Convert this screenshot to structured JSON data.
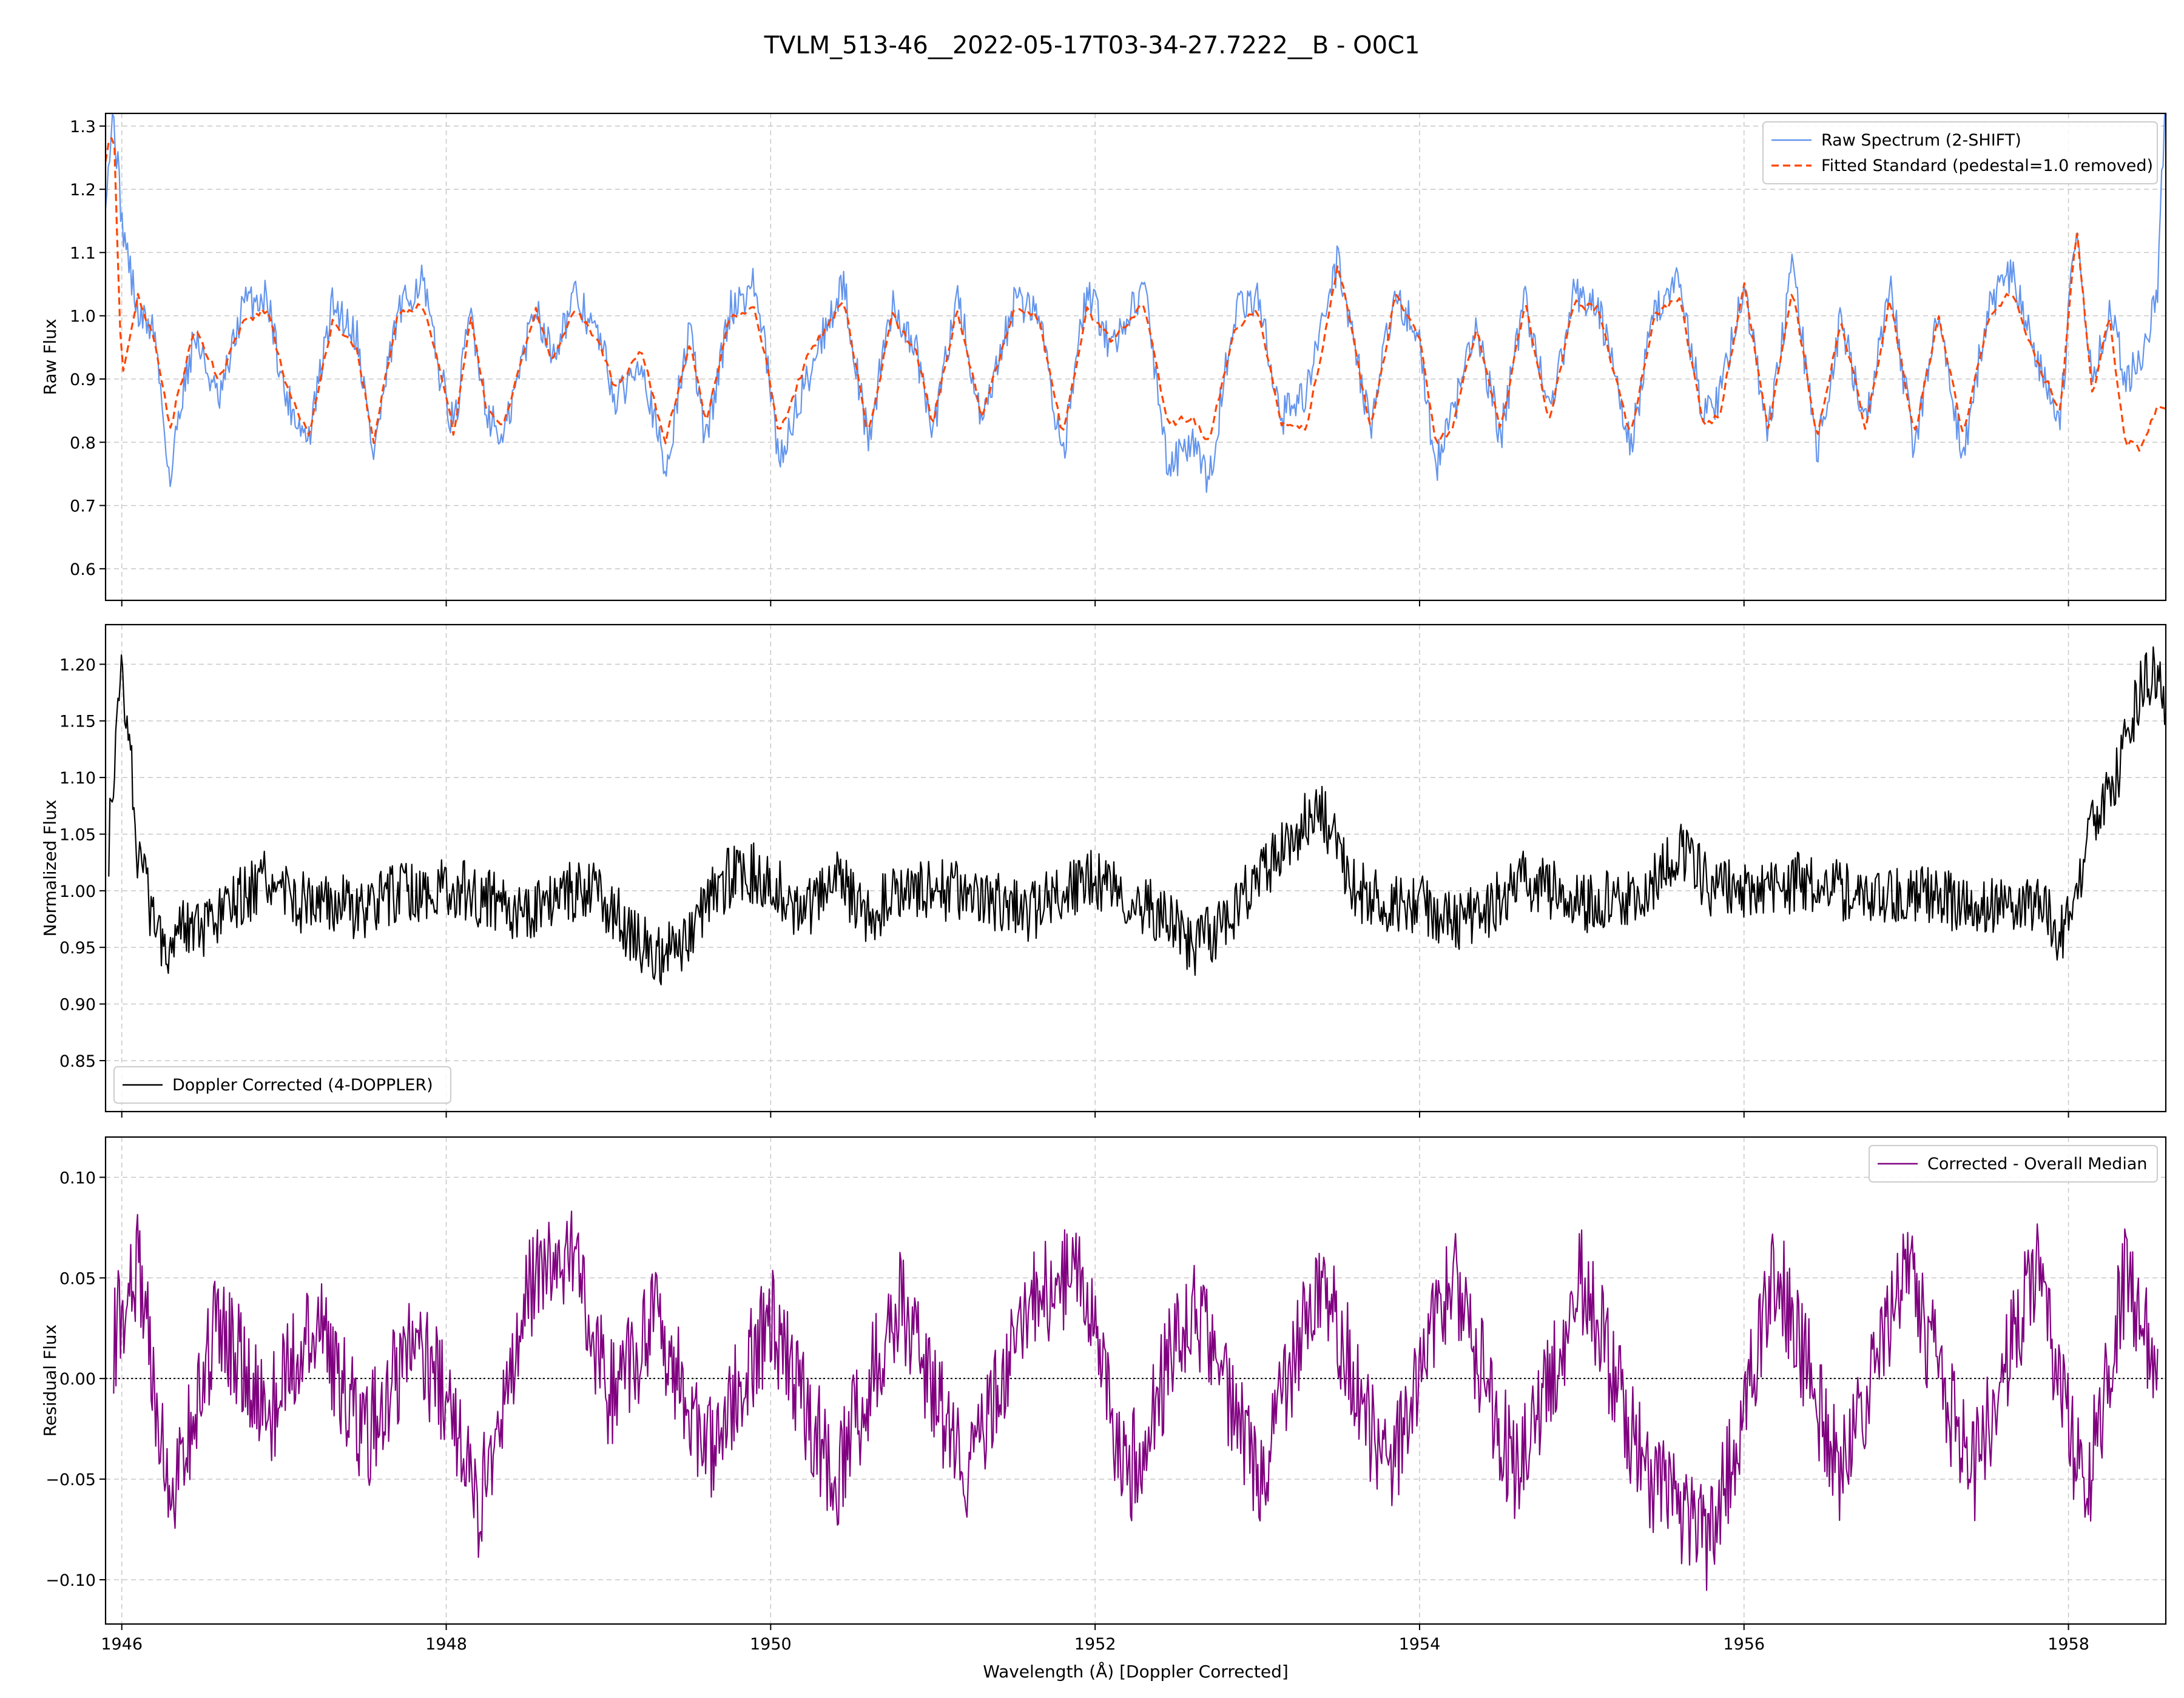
{
  "title": "TVLM_513-46__2022-05-17T03-34-27.7222__B - O0C1",
  "chart_data": [
    {
      "type": "line",
      "panel": "top",
      "ylabel": "Raw Flux",
      "xlim": [
        1945.9,
        1958.6
      ],
      "ylim": [
        0.55,
        1.32
      ],
      "yticks": [
        0.6,
        0.7,
        0.8,
        0.9,
        1.0,
        1.1,
        1.2,
        1.3
      ],
      "ytick_labels": [
        "0.6",
        "0.7",
        "0.8",
        "0.9",
        "1.0",
        "1.1",
        "1.2",
        "1.3"
      ],
      "legend_position": "upper right",
      "grid": true,
      "series": [
        {
          "name": "Raw Spectrum (2-SHIFT)",
          "color": "#6495ed",
          "style": "solid",
          "x": [
            1945.9,
            1945.95,
            1946.0,
            1946.1,
            1946.2,
            1946.3,
            1946.35,
            1946.45,
            1946.6,
            1946.75,
            1946.9,
            1947.0,
            1947.15,
            1947.3,
            1947.45,
            1947.55,
            1947.7,
            1947.85,
            1947.95,
            1948.05,
            1948.15,
            1948.25,
            1948.35,
            1948.55,
            1948.65,
            1948.8,
            1948.95,
            1949.05,
            1949.2,
            1949.35,
            1949.5,
            1949.6,
            1949.75,
            1949.9,
            1949.97,
            1950.05,
            1950.25,
            1950.35,
            1950.45,
            1950.6,
            1950.75,
            1950.9,
            1951.0,
            1951.15,
            1951.3,
            1951.5,
            1951.65,
            1951.8,
            1951.95,
            1952.1,
            1952.3,
            1952.45,
            1952.6,
            1952.7,
            1952.85,
            1953.0,
            1953.15,
            1953.3,
            1953.5,
            1953.7,
            1953.85,
            1954.0,
            1954.1,
            1954.2,
            1954.35,
            1954.5,
            1954.65,
            1954.8,
            1954.95,
            1955.1,
            1955.3,
            1955.45,
            1955.6,
            1955.75,
            1955.85,
            1956.0,
            1956.15,
            1956.3,
            1956.45,
            1956.6,
            1956.75,
            1956.9,
            1957.05,
            1957.2,
            1957.35,
            1957.5,
            1957.65,
            1957.8,
            1957.95,
            1958.05,
            1958.15,
            1958.25,
            1958.35,
            1958.45,
            1958.55,
            1958.6
          ],
          "y": [
            1.2,
            1.32,
            1.15,
            1.0,
            0.98,
            0.73,
            0.85,
            0.97,
            0.86,
            1.02,
            1.03,
            0.88,
            0.8,
            1.02,
            0.97,
            0.78,
            1.0,
            1.06,
            0.92,
            0.82,
            1.01,
            0.85,
            0.8,
            1.02,
            0.94,
            1.03,
            0.96,
            0.86,
            0.94,
            0.75,
            0.98,
            0.8,
            1.01,
            1.05,
            0.94,
            0.77,
            0.92,
            0.99,
            1.05,
            0.8,
            1.02,
            0.94,
            0.81,
            1.04,
            0.82,
            1.02,
            1.01,
            0.78,
            1.04,
            0.95,
            1.05,
            0.76,
            0.8,
            0.73,
            1.0,
            1.03,
            0.84,
            0.88,
            1.09,
            0.82,
            1.04,
            0.96,
            0.76,
            0.84,
            0.98,
            0.81,
            1.03,
            0.84,
            1.03,
            1.02,
            0.79,
            1.01,
            1.06,
            0.84,
            0.87,
            1.05,
            0.81,
            1.08,
            0.78,
            1.0,
            0.82,
            1.05,
            0.78,
            1.02,
            0.77,
            1.01,
            1.07,
            0.93,
            0.84,
            1.15,
            0.88,
            1.02,
            0.9,
            0.93,
            1.05,
            1.36
          ]
        },
        {
          "name": "Fitted Standard (pedestal=1.0 removed)",
          "color": "#ff4500",
          "style": "dashed",
          "x": [
            1945.9,
            1945.95,
            1946.0,
            1946.1,
            1946.2,
            1946.3,
            1946.35,
            1946.45,
            1946.6,
            1946.75,
            1946.9,
            1947.0,
            1947.15,
            1947.3,
            1947.45,
            1947.55,
            1947.7,
            1947.85,
            1947.95,
            1948.05,
            1948.15,
            1948.25,
            1948.35,
            1948.55,
            1948.65,
            1948.8,
            1948.95,
            1949.05,
            1949.2,
            1949.35,
            1949.5,
            1949.6,
            1949.75,
            1949.9,
            1949.97,
            1950.05,
            1950.25,
            1950.35,
            1950.45,
            1950.6,
            1950.75,
            1950.9,
            1951.0,
            1951.15,
            1951.3,
            1951.5,
            1951.65,
            1951.8,
            1951.95,
            1952.1,
            1952.3,
            1952.45,
            1952.6,
            1952.7,
            1952.85,
            1953.0,
            1953.15,
            1953.3,
            1953.5,
            1953.7,
            1953.85,
            1954.0,
            1954.1,
            1954.2,
            1954.35,
            1954.5,
            1954.65,
            1954.8,
            1954.95,
            1955.1,
            1955.3,
            1955.45,
            1955.6,
            1955.75,
            1955.85,
            1956.0,
            1956.15,
            1956.3,
            1956.45,
            1956.6,
            1956.75,
            1956.9,
            1957.05,
            1957.2,
            1957.35,
            1957.5,
            1957.65,
            1957.8,
            1957.95,
            1958.05,
            1958.15,
            1958.25,
            1958.35,
            1958.45,
            1958.55,
            1958.6
          ],
          "y": [
            1.25,
            1.3,
            0.9,
            1.03,
            0.96,
            0.82,
            0.88,
            0.98,
            0.9,
            0.99,
            1.01,
            0.9,
            0.81,
            0.99,
            0.95,
            0.8,
            1.0,
            1.02,
            0.93,
            0.81,
            1.0,
            0.85,
            0.82,
            1.01,
            0.93,
            1.01,
            0.95,
            0.88,
            0.95,
            0.8,
            0.96,
            0.83,
            1.0,
            1.01,
            0.93,
            0.81,
            0.95,
            0.98,
            1.03,
            0.81,
            1.0,
            0.94,
            0.83,
            1.01,
            0.84,
            1.01,
            1.0,
            0.81,
            1.01,
            0.96,
            1.02,
            0.83,
            0.84,
            0.8,
            0.97,
            1.01,
            0.83,
            0.82,
            1.08,
            0.82,
            1.03,
            0.97,
            0.8,
            0.82,
            0.98,
            0.82,
            1.02,
            0.83,
            1.02,
            1.01,
            0.81,
            1.0,
            1.03,
            0.83,
            0.84,
            1.05,
            0.82,
            1.04,
            0.81,
            0.99,
            0.82,
            1.03,
            0.81,
            1.0,
            0.81,
            0.99,
            1.04,
            0.93,
            0.85,
            1.14,
            0.87,
            1.0,
            0.8,
            0.79,
            0.86,
            0.85
          ]
        }
      ]
    },
    {
      "type": "line",
      "panel": "middle",
      "ylabel": "Normalized Flux",
      "xlim": [
        1945.9,
        1958.6
      ],
      "ylim": [
        0.805,
        1.235
      ],
      "yticks": [
        0.85,
        0.9,
        0.95,
        1.0,
        1.05,
        1.1,
        1.15,
        1.2
      ],
      "ytick_labels": [
        "0.85",
        "0.90",
        "0.95",
        "1.00",
        "1.05",
        "1.10",
        "1.15",
        "1.20"
      ],
      "legend_position": "lower left",
      "grid": true,
      "series": [
        {
          "name": "Doppler Corrected (4-DOPPLER)",
          "color": "#000000",
          "style": "solid",
          "x": [
            1945.92,
            1946.0,
            1946.05,
            1946.1,
            1946.2,
            1946.3,
            1946.35,
            1946.5,
            1946.7,
            1946.9,
            1947.1,
            1947.3,
            1947.5,
            1947.7,
            1947.9,
            1948.1,
            1948.3,
            1948.5,
            1948.7,
            1948.9,
            1949.1,
            1949.3,
            1949.45,
            1949.6,
            1949.8,
            1950.0,
            1950.2,
            1950.4,
            1950.6,
            1950.8,
            1951.0,
            1951.2,
            1951.4,
            1951.6,
            1951.8,
            1952.0,
            1952.2,
            1952.4,
            1952.6,
            1952.7,
            1952.9,
            1953.1,
            1953.3,
            1953.4,
            1953.5,
            1953.6,
            1953.8,
            1954.0,
            1954.2,
            1954.4,
            1954.6,
            1954.8,
            1955.0,
            1955.2,
            1955.4,
            1955.6,
            1955.8,
            1956.0,
            1956.2,
            1956.4,
            1956.6,
            1956.8,
            1957.0,
            1957.2,
            1957.4,
            1957.6,
            1957.8,
            1957.95,
            1958.05,
            1958.15,
            1958.3,
            1958.45,
            1958.55,
            1958.6
          ],
          "y": [
            1.04,
            1.2,
            1.13,
            1.03,
            0.97,
            0.95,
            0.98,
            0.96,
            0.99,
            1.01,
            0.99,
            0.99,
            0.98,
            1.0,
            1.0,
            1.0,
            0.99,
            0.98,
            1.0,
            1.0,
            0.97,
            0.94,
            0.95,
            0.99,
            1.02,
            1.01,
            0.98,
            1.01,
            0.98,
            1.0,
            1.0,
            1.0,
            0.99,
            0.98,
            1.0,
            1.01,
            0.99,
            0.98,
            0.95,
            0.96,
            0.99,
            1.03,
            1.06,
            1.07,
            1.04,
            1.0,
            0.99,
            0.99,
            0.97,
            0.98,
            1.01,
            1.0,
            0.99,
            0.99,
            1.0,
            1.04,
            1.0,
            1.0,
            1.0,
            1.01,
            1.0,
            0.99,
            1.0,
            0.99,
            0.99,
            0.99,
            0.99,
            0.96,
            0.99,
            1.06,
            1.1,
            1.18,
            1.2,
            1.15
          ]
        }
      ]
    },
    {
      "type": "line",
      "panel": "bottom",
      "ylabel": "Residual Flux",
      "xlabel": "Wavelength (Å) [Doppler Corrected]",
      "xlim": [
        1945.9,
        1958.6
      ],
      "ylim": [
        -0.122,
        0.12
      ],
      "xticks": [
        1946,
        1948,
        1950,
        1952,
        1954,
        1956,
        1958
      ],
      "xtick_labels": [
        "1946",
        "1948",
        "1950",
        "1952",
        "1954",
        "1956",
        "1958"
      ],
      "yticks": [
        -0.1,
        -0.05,
        0.0,
        0.05,
        0.1
      ],
      "ytick_labels": [
        "−0.10",
        "−0.05",
        "0.00",
        "0.05",
        "0.10"
      ],
      "reference_line": 0.0,
      "legend_position": "upper right",
      "grid": true,
      "series": [
        {
          "name": "Corrected - Overall Median",
          "color": "#800080",
          "style": "solid",
          "x": [
            1945.95,
            1946.1,
            1946.3,
            1946.6,
            1946.9,
            1947.2,
            1947.5,
            1947.8,
            1948.0,
            1948.2,
            1948.5,
            1948.75,
            1949.0,
            1949.3,
            1949.6,
            1950.0,
            1950.4,
            1950.8,
            1951.2,
            1951.6,
            1951.9,
            1952.2,
            1952.6,
            1953.0,
            1953.4,
            1953.8,
            1954.2,
            1954.6,
            1955.0,
            1955.4,
            1955.8,
            1956.2,
            1956.6,
            1957.0,
            1957.4,
            1957.8,
            1958.1,
            1958.35,
            1958.55
          ],
          "y": [
            0.02,
            0.06,
            -0.065,
            0.03,
            -0.02,
            0.03,
            -0.03,
            0.02,
            -0.01,
            -0.065,
            0.04,
            0.067,
            -0.01,
            0.03,
            -0.04,
            0.03,
            -0.05,
            0.04,
            -0.05,
            0.04,
            0.05,
            -0.05,
            0.04,
            -0.05,
            0.05,
            -0.05,
            0.05,
            -0.05,
            0.05,
            -0.05,
            -0.08,
            0.055,
            -0.05,
            0.055,
            -0.05,
            0.055,
            -0.06,
            0.05,
            0.01
          ]
        }
      ]
    }
  ]
}
